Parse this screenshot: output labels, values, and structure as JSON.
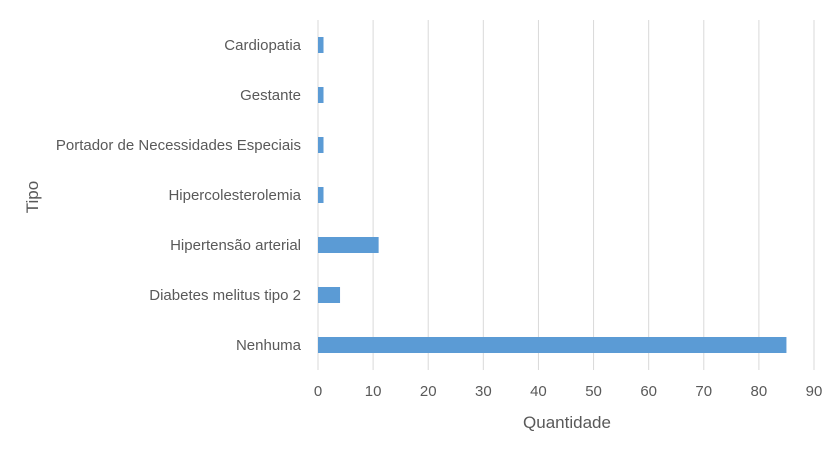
{
  "chart_data": {
    "type": "bar",
    "orientation": "horizontal",
    "categories": [
      "Cardiopatia",
      "Gestante",
      "Portador de Necessidades Especiais",
      "Hipercolesterolemia",
      "Hipertensão arterial",
      "Diabetes melitus tipo 2",
      "Nenhuma"
    ],
    "values": [
      1,
      1,
      1,
      1,
      11,
      4,
      85
    ],
    "xlabel": "Quantidade",
    "ylabel": "Tipo",
    "xlim": [
      0,
      90
    ],
    "xticks": [
      0,
      10,
      20,
      30,
      40,
      50,
      60,
      70,
      80,
      90
    ],
    "grid": "vertical",
    "legend": "none",
    "bar_color": "#5b9bd5",
    "grid_color": "#d9d9d9"
  }
}
